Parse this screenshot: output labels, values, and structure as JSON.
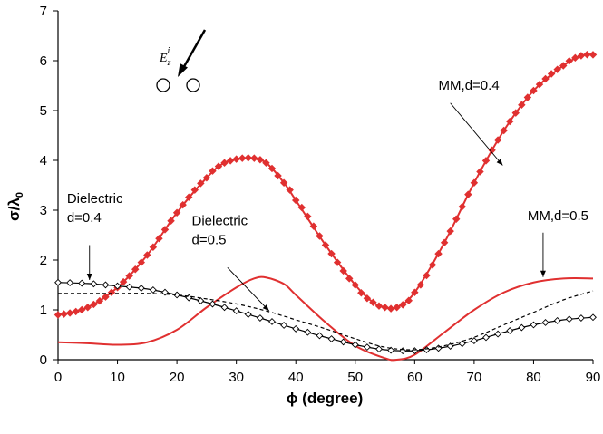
{
  "chart_data": {
    "type": "line",
    "xlabel": "ϕ (degree)",
    "ylabel_main": "σ/λ",
    "ylabel_sub": "0",
    "xlim": [
      0,
      90
    ],
    "ylim": [
      0,
      7
    ],
    "xticks": [
      0,
      10,
      20,
      30,
      40,
      50,
      60,
      70,
      80,
      90
    ],
    "yticks": [
      0,
      1,
      2,
      3,
      4,
      5,
      6,
      7
    ],
    "grid": false,
    "legend": "none",
    "series": [
      {
        "key": "mm04",
        "color": "#e03030",
        "marker": "diamond-filled",
        "line": "solid",
        "x": [
          0,
          5,
          10,
          15,
          20,
          25,
          28,
          32,
          35,
          38,
          40,
          45,
          50,
          53,
          55,
          57,
          60,
          65,
          70,
          75,
          80,
          85,
          88,
          90
        ],
        "y": [
          0.9,
          1.05,
          1.45,
          2.1,
          2.95,
          3.65,
          3.95,
          4.05,
          3.95,
          3.55,
          3.2,
          2.3,
          1.5,
          1.15,
          1.05,
          1.05,
          1.35,
          2.35,
          3.55,
          4.6,
          5.4,
          5.9,
          6.1,
          6.12
        ]
      },
      {
        "key": "mm05",
        "color": "#e03030",
        "marker": "none",
        "line": "solid",
        "x": [
          0,
          5,
          10,
          15,
          20,
          25,
          30,
          33,
          35,
          38,
          40,
          45,
          50,
          55,
          57,
          60,
          65,
          70,
          75,
          80,
          85,
          90
        ],
        "y": [
          0.35,
          0.33,
          0.3,
          0.35,
          0.6,
          1.05,
          1.45,
          1.63,
          1.65,
          1.52,
          1.3,
          0.75,
          0.28,
          0.03,
          0.0,
          0.1,
          0.55,
          1.0,
          1.35,
          1.55,
          1.63,
          1.63
        ]
      },
      {
        "key": "d04",
        "color": "#000000",
        "marker": "diamond-open",
        "line": "solid",
        "x": [
          0,
          5,
          10,
          15,
          20,
          25,
          30,
          35,
          40,
          45,
          50,
          55,
          60,
          65,
          70,
          75,
          80,
          85,
          90
        ],
        "y": [
          1.55,
          1.53,
          1.48,
          1.42,
          1.3,
          1.15,
          0.98,
          0.8,
          0.62,
          0.45,
          0.3,
          0.2,
          0.18,
          0.25,
          0.38,
          0.55,
          0.7,
          0.8,
          0.85
        ]
      },
      {
        "key": "d05",
        "color": "#000000",
        "marker": "none",
        "line": "dashed",
        "x": [
          0,
          5,
          10,
          15,
          20,
          25,
          30,
          35,
          40,
          45,
          50,
          55,
          60,
          65,
          70,
          75,
          80,
          85,
          90
        ],
        "y": [
          1.33,
          1.33,
          1.33,
          1.33,
          1.3,
          1.22,
          1.12,
          0.98,
          0.8,
          0.62,
          0.42,
          0.25,
          0.2,
          0.28,
          0.45,
          0.7,
          0.95,
          1.2,
          1.38
        ]
      }
    ],
    "annotations": [
      {
        "key": "mm04",
        "text": [
          "MM,d=0.4"
        ],
        "text_at": [
          64,
          5.42
        ],
        "arrow_from": [
          66,
          5.15
        ],
        "arrow_to": [
          74.8,
          3.9
        ]
      },
      {
        "key": "mm05",
        "text": [
          "MM,d=0.5"
        ],
        "text_at": [
          79,
          2.8
        ],
        "arrow_from": [
          81.6,
          2.55
        ],
        "arrow_to": [
          81.6,
          1.66
        ]
      },
      {
        "key": "d04",
        "text": [
          "Dielectric",
          "d=0.4"
        ],
        "text_at": [
          1.5,
          3.15
        ],
        "arrow_from": [
          5.3,
          2.3
        ],
        "arrow_to": [
          5.3,
          1.6
        ]
      },
      {
        "key": "d05",
        "text": [
          "Dielectric",
          "d=0.5"
        ],
        "text_at": [
          22.5,
          2.7
        ],
        "arrow_from": [
          28.5,
          1.85
        ],
        "arrow_to": [
          35.5,
          0.98
        ]
      }
    ],
    "inset": {
      "field_label_main": "E",
      "field_label_sub": "z",
      "field_label_sup": "i"
    }
  }
}
